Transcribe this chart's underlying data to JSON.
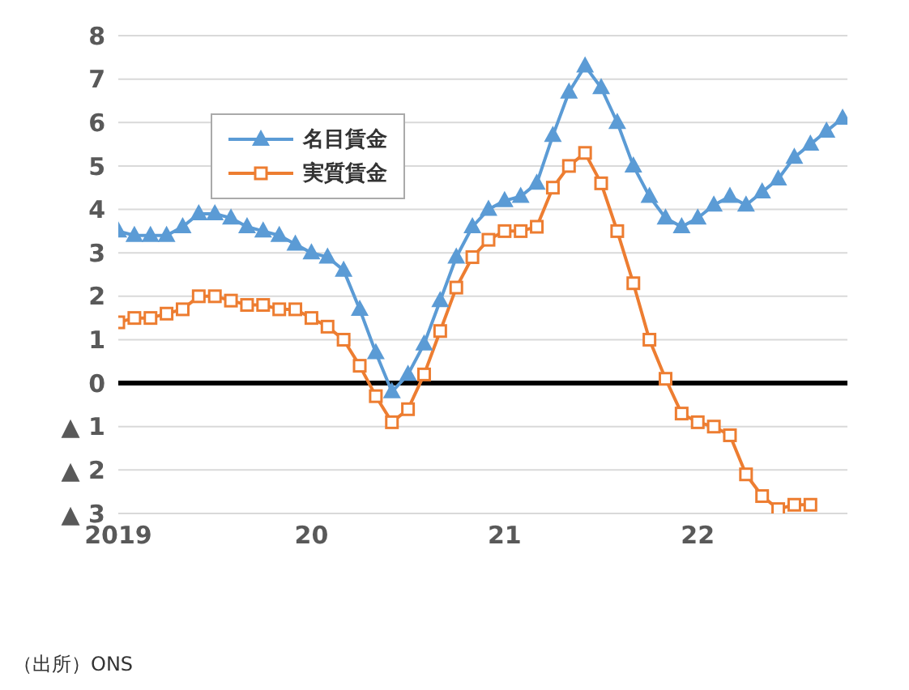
{
  "chart_data": {
    "type": "line",
    "categories": [
      "2019",
      null,
      null,
      null,
      null,
      null,
      null,
      null,
      null,
      null,
      null,
      null,
      "20",
      null,
      null,
      null,
      null,
      null,
      null,
      null,
      null,
      null,
      null,
      null,
      "21",
      null,
      null,
      null,
      null,
      null,
      null,
      null,
      null,
      null,
      null,
      null,
      "22",
      null,
      null,
      null,
      null,
      null,
      null,
      null,
      null,
      null
    ],
    "series": [
      {
        "name": "名目賃金",
        "color": "#5b9bd5",
        "marker": "triangle",
        "values": [
          3.5,
          3.4,
          3.4,
          3.4,
          3.6,
          3.9,
          3.9,
          3.8,
          3.6,
          3.5,
          3.4,
          3.2,
          3.0,
          2.9,
          2.6,
          1.7,
          0.7,
          -0.2,
          0.2,
          0.9,
          1.9,
          2.9,
          3.6,
          4.0,
          4.2,
          4.3,
          4.6,
          5.7,
          6.7,
          7.3,
          6.8,
          6.0,
          5.0,
          4.3,
          3.8,
          3.6,
          3.8,
          4.1,
          4.3,
          4.1,
          4.4,
          4.7,
          5.2,
          5.5,
          5.8,
          6.1
        ]
      },
      {
        "name": "実質賃金",
        "color": "#ed7d31",
        "marker": "square",
        "values": [
          1.4,
          1.5,
          1.5,
          1.6,
          1.7,
          2.0,
          2.0,
          1.9,
          1.8,
          1.8,
          1.7,
          1.7,
          1.5,
          1.3,
          1.0,
          0.4,
          -0.3,
          -0.9,
          -0.6,
          0.2,
          1.2,
          2.2,
          2.9,
          3.3,
          3.5,
          3.5,
          3.6,
          4.5,
          5.0,
          5.3,
          4.6,
          3.5,
          2.3,
          1.0,
          0.1,
          -0.7,
          -0.9,
          -1.0,
          -1.2,
          -2.1,
          -2.6,
          -2.9,
          -2.8,
          -2.8,
          null,
          null
        ]
      }
    ],
    "ylim": [
      -3,
      8
    ],
    "yticks": [
      {
        "value": -3,
        "label": "▲ 3"
      },
      {
        "value": -2,
        "label": "▲ 2"
      },
      {
        "value": -1,
        "label": "▲ 1"
      },
      0,
      1,
      2,
      3,
      4,
      5,
      6,
      7,
      8
    ],
    "ref_lines": [
      {
        "axis": "y",
        "value": 0,
        "color": "#000000"
      }
    ],
    "grid": "y",
    "legend": "top left",
    "annotations": [
      "（出所）ONS"
    ]
  }
}
